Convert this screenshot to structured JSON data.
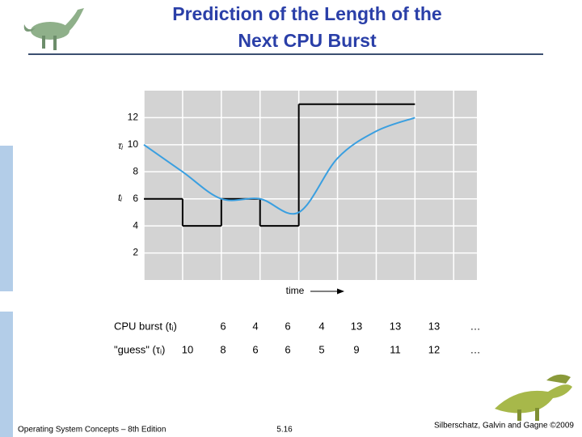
{
  "chart_data": {
    "type": "line",
    "title": [
      "Prediction of the Length of the",
      "Next CPU Burst"
    ],
    "xlabel": "time",
    "xlim": [
      0,
      8.6
    ],
    "ylim": [
      0,
      14
    ],
    "yticks": [
      2,
      4,
      6,
      8,
      10,
      12
    ],
    "grid": true,
    "series": [
      {
        "name": "CPU burst (tᵢ)",
        "symbol": "tᵢ",
        "style": "step",
        "color": "#000000",
        "values": [
          6,
          4,
          6,
          4,
          13,
          13,
          13
        ]
      },
      {
        "name": "\"guess\" (τᵢ)",
        "symbol": "τᵢ",
        "style": "smooth",
        "color": "#3a9fe0",
        "values": [
          10,
          8,
          6,
          6,
          5,
          9,
          11,
          12
        ]
      }
    ],
    "ellipsis": "…"
  },
  "footer": {
    "left": "Operating System Concepts – 8th Edition",
    "center": "5.16",
    "right": "Silberschatz, Galvin and Gagne ©2009"
  }
}
